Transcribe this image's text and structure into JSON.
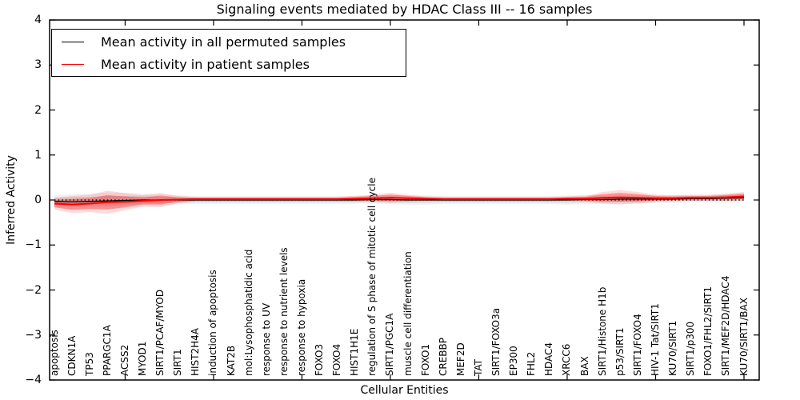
{
  "title": "Signaling events mediated by HDAC Class III -- 16 samples",
  "axes": {
    "xlabel": "Cellular Entities",
    "ylabel": "Inferred Activity"
  },
  "legend": {
    "items": [
      {
        "label": "Mean activity in all permuted samples",
        "color": "#000000"
      },
      {
        "label": "Mean activity in patient samples",
        "color": "#ff0000"
      }
    ]
  },
  "chart_data": {
    "type": "line",
    "title": "Signaling events mediated by HDAC Class III -- 16 samples",
    "xlabel": "Cellular Entities",
    "ylabel": "Inferred Activity",
    "ylim": [
      -4,
      4
    ],
    "yticks": [
      -4,
      -3,
      -2,
      -1,
      0,
      1,
      2,
      3,
      4
    ],
    "xtick_major_every": 5,
    "grid": false,
    "legend_position": "upper left",
    "categories": [
      "apoptosis",
      "CDKN1A",
      "TP53",
      "PPARGC1A",
      "ACSS2",
      "MYOD1",
      "SIRT1/PCAF/MYOD",
      "SIRT1",
      "HIST2H4A",
      "induction of apoptosis",
      "KAT2B",
      "mol:Lysophosphatidic acid",
      "response to UV",
      "response to nutrient levels",
      "response to hypoxia",
      "FOXO3",
      "FOXO4",
      "HIST1H1E",
      "regulation of S phase of mitotic cell cycle",
      "SIRT1/PGC1A",
      "muscle cell differentiation",
      "FOXO1",
      "CREBBP",
      "MEF2D",
      "TAT",
      "SIRT1/FOXO3a",
      "EP300",
      "FHL2",
      "HDAC4",
      "XRCC6",
      "BAX",
      "SIRT1/Histone H1b",
      "p53/SIRT1",
      "SIRT1/FOXO4",
      "HIV-1 Tat/SIRT1",
      "KU70/SIRT1",
      "SIRT1/p300",
      "FOXO1/FHL2/SIRT1",
      "SIRT1/MEF2D/HDAC4",
      "KU70/SIRT1/BAX"
    ],
    "series": [
      {
        "name": "Mean activity in all permuted samples",
        "color": "#000000",
        "band_color": "#808080",
        "values": [
          -0.03,
          -0.04,
          -0.03,
          -0.02,
          -0.01,
          0.0,
          0.0,
          0.0,
          0.0,
          0.0,
          0.0,
          0.0,
          0.0,
          0.0,
          0.0,
          0.0,
          0.0,
          0.0,
          0.01,
          0.01,
          0.0,
          0.0,
          0.0,
          0.0,
          0.0,
          0.0,
          0.0,
          0.0,
          0.0,
          0.0,
          0.01,
          0.01,
          0.02,
          0.02,
          0.02,
          0.02,
          0.03,
          0.03,
          0.04,
          0.05
        ],
        "band_halfwidth": [
          0.08,
          0.1,
          0.1,
          0.11,
          0.1,
          0.08,
          0.07,
          0.06,
          0.05,
          0.05,
          0.05,
          0.05,
          0.05,
          0.05,
          0.05,
          0.05,
          0.05,
          0.05,
          0.05,
          0.06,
          0.06,
          0.06,
          0.05,
          0.05,
          0.05,
          0.05,
          0.05,
          0.05,
          0.05,
          0.06,
          0.06,
          0.06,
          0.06,
          0.06,
          0.05,
          0.05,
          0.05,
          0.05,
          0.06,
          0.06
        ]
      },
      {
        "name": "Mean activity in patient samples",
        "color": "#ff0000",
        "band_color": "#ff0000",
        "values": [
          -0.08,
          -0.1,
          -0.08,
          -0.05,
          -0.04,
          -0.02,
          0.0,
          0.01,
          0.02,
          0.02,
          0.02,
          0.02,
          0.02,
          0.02,
          0.02,
          0.02,
          0.02,
          0.03,
          0.04,
          0.05,
          0.04,
          0.03,
          0.02,
          0.02,
          0.02,
          0.02,
          0.02,
          0.02,
          0.02,
          0.03,
          0.03,
          0.05,
          0.06,
          0.05,
          0.04,
          0.04,
          0.05,
          0.05,
          0.06,
          0.08
        ],
        "band_halfwidth": [
          0.08,
          0.12,
          0.12,
          0.16,
          0.12,
          0.08,
          0.1,
          0.05,
          0.03,
          0.03,
          0.03,
          0.03,
          0.03,
          0.03,
          0.03,
          0.03,
          0.03,
          0.04,
          0.05,
          0.07,
          0.05,
          0.03,
          0.03,
          0.03,
          0.03,
          0.03,
          0.03,
          0.03,
          0.03,
          0.03,
          0.04,
          0.08,
          0.1,
          0.08,
          0.05,
          0.04,
          0.04,
          0.04,
          0.05,
          0.06
        ]
      }
    ],
    "zero_line": {
      "y": 0,
      "style": "dotted",
      "color": "#000000"
    }
  }
}
